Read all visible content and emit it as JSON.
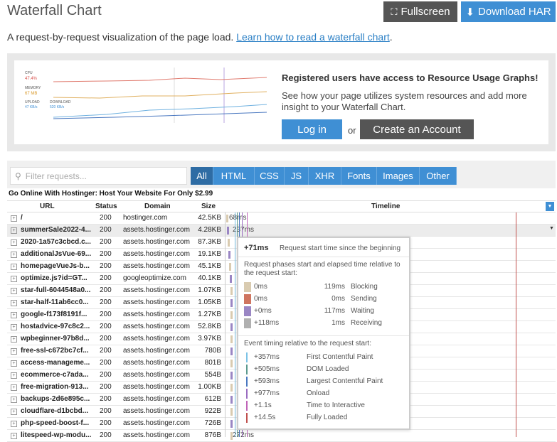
{
  "header": {
    "title": "Waterfall Chart",
    "fullscreen": "Fullscreen",
    "download": "Download HAR"
  },
  "intro": {
    "text": "A request-by-request visualization of the page load.",
    "link": "Learn how to read a waterfall chart",
    "end": "."
  },
  "promo": {
    "preview": {
      "cpu_label": "CPU",
      "cpu_value": "47.4%",
      "memory_label": "MEMORY",
      "memory_value": "67 MB",
      "upload_label": "UPLOAD",
      "upload_value": "47 KB/s",
      "download_label": "DOWNLOAD",
      "download_value": "520 KB/s"
    },
    "heading": "Registered users have access to Resource Usage Graphs!",
    "text": "See how your page utilizes system resources and add more insight to your Waterfall Chart.",
    "login": "Log in",
    "or": "or",
    "signup": "Create an Account"
  },
  "filter": {
    "placeholder": "Filter requests...",
    "tabs": [
      "All",
      "HTML",
      "CSS",
      "JS",
      "XHR",
      "Fonts",
      "Images",
      "Other"
    ]
  },
  "page_title": "Go Online With Hostinger: Host Your Website For Only $2.99",
  "table": {
    "columns": [
      "URL",
      "Status",
      "Domain",
      "Size",
      "Timeline"
    ],
    "rows": [
      {
        "url": "/",
        "status": "200",
        "domain": "hostinger.com",
        "size": "42.5KB",
        "time": "68ms"
      },
      {
        "url": "summerSale2022-4...",
        "status": "200",
        "domain": "assets.hostinger.com",
        "size": "4.28KB",
        "time": "237ms"
      },
      {
        "url": "2020-1a57c3cbcd.c...",
        "status": "200",
        "domain": "assets.hostinger.com",
        "size": "87.3KB"
      },
      {
        "url": "additionalJsVue-69...",
        "status": "200",
        "domain": "assets.hostinger.com",
        "size": "19.1KB"
      },
      {
        "url": "homepageVueJs-b...",
        "status": "200",
        "domain": "assets.hostinger.com",
        "size": "45.1KB"
      },
      {
        "url": "optimize.js?id=GT...",
        "status": "200",
        "domain": "googleoptimize.com",
        "size": "40.1KB"
      },
      {
        "url": "star-full-6044548a0...",
        "status": "200",
        "domain": "assets.hostinger.com",
        "size": "1.07KB"
      },
      {
        "url": "star-half-11ab6cc0...",
        "status": "200",
        "domain": "assets.hostinger.com",
        "size": "1.05KB"
      },
      {
        "url": "google-f173f8191f...",
        "status": "200",
        "domain": "assets.hostinger.com",
        "size": "1.27KB"
      },
      {
        "url": "hostadvice-97c8c2...",
        "status": "200",
        "domain": "assets.hostinger.com",
        "size": "52.8KB"
      },
      {
        "url": "wpbeginner-97b8d...",
        "status": "200",
        "domain": "assets.hostinger.com",
        "size": "3.97KB"
      },
      {
        "url": "free-ssl-c672bc7cf...",
        "status": "200",
        "domain": "assets.hostinger.com",
        "size": "780B"
      },
      {
        "url": "access-manageme...",
        "status": "200",
        "domain": "assets.hostinger.com",
        "size": "801B"
      },
      {
        "url": "ecommerce-c7ada...",
        "status": "200",
        "domain": "assets.hostinger.com",
        "size": "554B"
      },
      {
        "url": "free-migration-913...",
        "status": "200",
        "domain": "assets.hostinger.com",
        "size": "1.00KB"
      },
      {
        "url": "backups-2d6e895c...",
        "status": "200",
        "domain": "assets.hostinger.com",
        "size": "612B"
      },
      {
        "url": "cloudflare-d1bcbd...",
        "status": "200",
        "domain": "assets.hostinger.com",
        "size": "922B"
      },
      {
        "url": "php-speed-boost-f...",
        "status": "200",
        "domain": "assets.hostinger.com",
        "size": "726B"
      },
      {
        "url": "litespeed-wp-modu...",
        "status": "200",
        "domain": "assets.hostinger.com",
        "size": "876B",
        "time": "272ms"
      }
    ]
  },
  "tooltip": {
    "start": "+71ms",
    "start_label": "Request start time since the beginning",
    "phases_title": "Request phases start and elapsed time relative to the request start:",
    "phases": [
      {
        "start": "0ms",
        "duration": "119ms",
        "name": "Blocking",
        "color": "#d9cbb0"
      },
      {
        "start": "0ms",
        "duration": "0ms",
        "name": "Sending",
        "color": "#cf7560"
      },
      {
        "start": "+0ms",
        "duration": "117ms",
        "name": "Waiting",
        "color": "#9a86c4"
      },
      {
        "start": "+118ms",
        "duration": "1ms",
        "name": "Receiving",
        "color": "#b0b0b0"
      }
    ],
    "events_title": "Event timing relative to the request start:",
    "events": [
      {
        "time": "+357ms",
        "name": "First Contentful Paint",
        "color": "#7cc3e6"
      },
      {
        "time": "+505ms",
        "name": "DOM Loaded",
        "color": "#5c9a8e"
      },
      {
        "time": "+593ms",
        "name": "Largest Contentful Paint",
        "color": "#4a78c0"
      },
      {
        "time": "+977ms",
        "name": "Onload",
        "color": "#9a6cc0"
      },
      {
        "time": "+1.1s",
        "name": "Time to Interactive",
        "color": "#c064b8"
      },
      {
        "time": "+14.5s",
        "name": "Fully Loaded",
        "color": "#c0504d"
      }
    ]
  }
}
